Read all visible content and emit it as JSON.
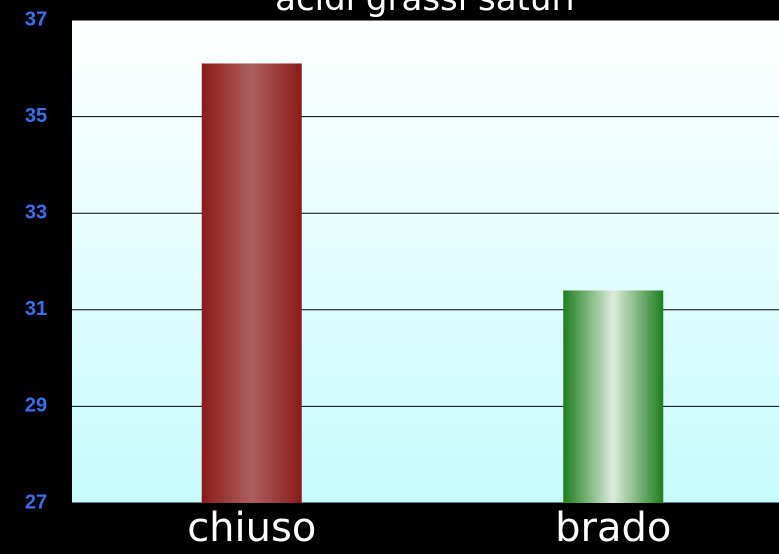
{
  "chart_data": {
    "type": "bar",
    "title": "acidi grassi saturi",
    "categories": [
      "chiuso",
      "brado"
    ],
    "values": [
      36.1,
      31.4
    ],
    "colors": [
      "#8b1a1a",
      "#1e7d1e"
    ],
    "ylim": [
      27,
      37
    ],
    "yticks": [
      27,
      29,
      31,
      33,
      35,
      37
    ],
    "grid": true
  }
}
